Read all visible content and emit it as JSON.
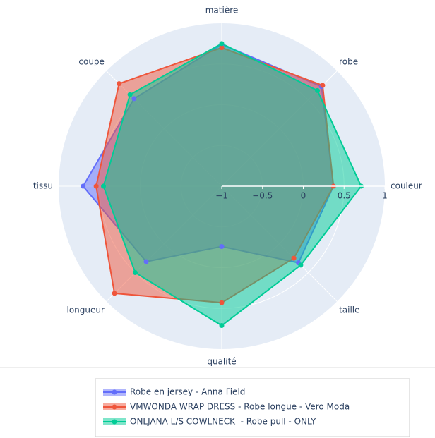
{
  "chart_data": {
    "type": "radar",
    "categories": [
      "couleur",
      "robe",
      "matière",
      "coupe",
      "tissu",
      "longueur",
      "qualité",
      "taille"
    ],
    "series": [
      {
        "name": "Robe en jersey - Anna Field",
        "color": "#636efa",
        "values": [
          0.37,
          0.73,
          0.74,
          0.52,
          0.7,
          0.31,
          -0.26,
          0.33
        ]
      },
      {
        "name": "VMWONDA WRAP DRESS - Robe longue - Vero Moda",
        "color": "#ef553b",
        "values": [
          0.37,
          0.75,
          0.7,
          0.78,
          0.54,
          0.86,
          0.43,
          0.25
        ]
      },
      {
        "name": "ONLJANA L/S COWLNECK  - Robe pull - ONLY",
        "color": "#00cc96",
        "values": [
          0.71,
          0.66,
          0.75,
          0.59,
          0.45,
          0.5,
          0.71,
          0.37
        ]
      }
    ],
    "ylim": [
      -1,
      1
    ],
    "yticks": [
      {
        "value": -1,
        "label": "−1"
      },
      {
        "value": -0.5,
        "label": "−0.5"
      },
      0,
      0.5,
      1
    ],
    "grid": true,
    "legend": "bottom"
  }
}
